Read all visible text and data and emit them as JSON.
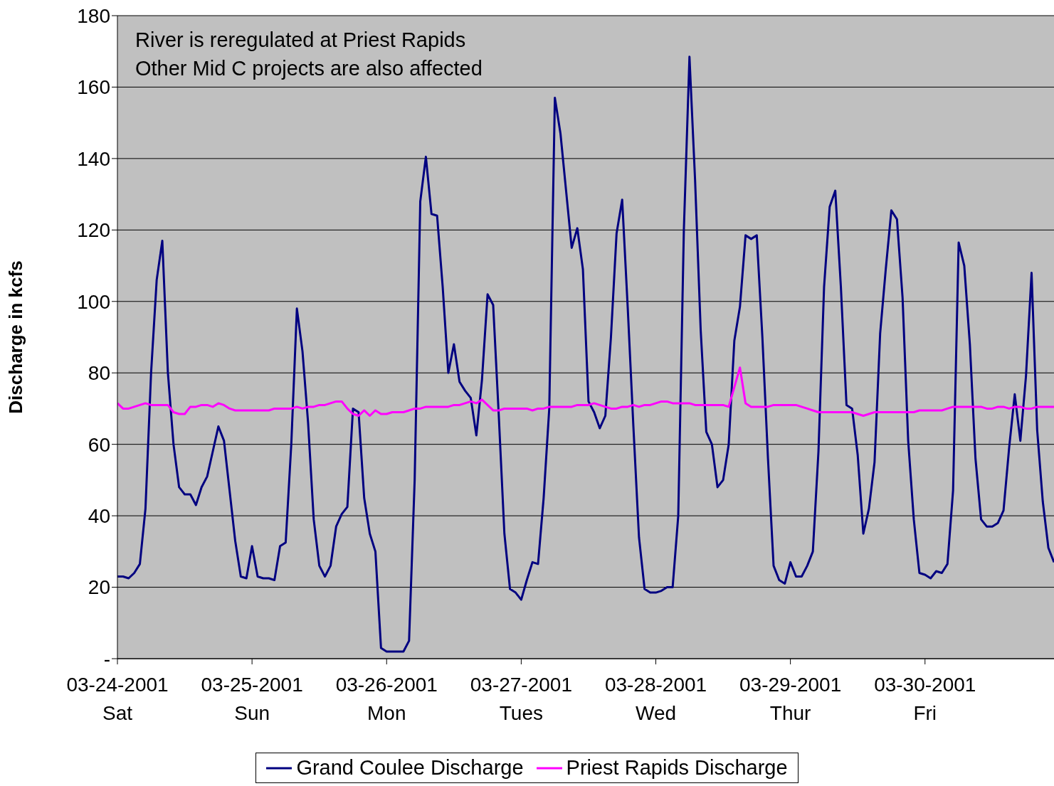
{
  "chart_data": {
    "type": "line",
    "ylabel": "Discharge in kcfs",
    "annotations": [
      "River is reregulated at Priest Rapids",
      "Other Mid C projects are also affected"
    ],
    "x": [
      "2001-03-24T00:00",
      "2001-03-24T01:00",
      "2001-03-24T02:00",
      "2001-03-24T03:00",
      "2001-03-24T04:00",
      "2001-03-24T05:00",
      "2001-03-24T06:00",
      "2001-03-24T07:00",
      "2001-03-24T08:00",
      "2001-03-24T09:00",
      "2001-03-24T10:00",
      "2001-03-24T11:00",
      "2001-03-24T12:00",
      "2001-03-24T13:00",
      "2001-03-24T14:00",
      "2001-03-24T15:00",
      "2001-03-24T16:00",
      "2001-03-24T17:00",
      "2001-03-24T18:00",
      "2001-03-24T19:00",
      "2001-03-24T20:00",
      "2001-03-24T21:00",
      "2001-03-24T22:00",
      "2001-03-24T23:00",
      "2001-03-25T00:00",
      "2001-03-25T01:00",
      "2001-03-25T02:00",
      "2001-03-25T03:00",
      "2001-03-25T04:00",
      "2001-03-25T05:00",
      "2001-03-25T06:00",
      "2001-03-25T07:00",
      "2001-03-25T08:00",
      "2001-03-25T09:00",
      "2001-03-25T10:00",
      "2001-03-25T11:00",
      "2001-03-25T12:00",
      "2001-03-25T13:00",
      "2001-03-25T14:00",
      "2001-03-25T15:00",
      "2001-03-25T16:00",
      "2001-03-25T17:00",
      "2001-03-25T18:00",
      "2001-03-25T19:00",
      "2001-03-25T20:00",
      "2001-03-25T21:00",
      "2001-03-25T22:00",
      "2001-03-25T23:00",
      "2001-03-26T00:00",
      "2001-03-26T01:00",
      "2001-03-26T02:00",
      "2001-03-26T03:00",
      "2001-03-26T04:00",
      "2001-03-26T05:00",
      "2001-03-26T06:00",
      "2001-03-26T07:00",
      "2001-03-26T08:00",
      "2001-03-26T09:00",
      "2001-03-26T10:00",
      "2001-03-26T11:00",
      "2001-03-26T12:00",
      "2001-03-26T13:00",
      "2001-03-26T14:00",
      "2001-03-26T15:00",
      "2001-03-26T16:00",
      "2001-03-26T17:00",
      "2001-03-26T18:00",
      "2001-03-26T19:00",
      "2001-03-26T20:00",
      "2001-03-26T21:00",
      "2001-03-26T22:00",
      "2001-03-26T23:00",
      "2001-03-27T00:00",
      "2001-03-27T01:00",
      "2001-03-27T02:00",
      "2001-03-27T03:00",
      "2001-03-27T04:00",
      "2001-03-27T05:00",
      "2001-03-27T06:00",
      "2001-03-27T07:00",
      "2001-03-27T08:00",
      "2001-03-27T09:00",
      "2001-03-27T10:00",
      "2001-03-27T11:00",
      "2001-03-27T12:00",
      "2001-03-27T13:00",
      "2001-03-27T14:00",
      "2001-03-27T15:00",
      "2001-03-27T16:00",
      "2001-03-27T17:00",
      "2001-03-27T18:00",
      "2001-03-27T19:00",
      "2001-03-27T20:00",
      "2001-03-27T21:00",
      "2001-03-27T22:00",
      "2001-03-27T23:00",
      "2001-03-28T00:00",
      "2001-03-28T01:00",
      "2001-03-28T02:00",
      "2001-03-28T03:00",
      "2001-03-28T04:00",
      "2001-03-28T05:00",
      "2001-03-28T06:00",
      "2001-03-28T07:00",
      "2001-03-28T08:00",
      "2001-03-28T09:00",
      "2001-03-28T10:00",
      "2001-03-28T11:00",
      "2001-03-28T12:00",
      "2001-03-28T13:00",
      "2001-03-28T14:00",
      "2001-03-28T15:00",
      "2001-03-28T16:00",
      "2001-03-28T17:00",
      "2001-03-28T18:00",
      "2001-03-28T19:00",
      "2001-03-28T20:00",
      "2001-03-28T21:00",
      "2001-03-28T22:00",
      "2001-03-28T23:00",
      "2001-03-29T00:00",
      "2001-03-29T01:00",
      "2001-03-29T02:00",
      "2001-03-29T03:00",
      "2001-03-29T04:00",
      "2001-03-29T05:00",
      "2001-03-29T06:00",
      "2001-03-29T07:00",
      "2001-03-29T08:00",
      "2001-03-29T09:00",
      "2001-03-29T10:00",
      "2001-03-29T11:00",
      "2001-03-29T12:00",
      "2001-03-29T13:00",
      "2001-03-29T14:00",
      "2001-03-29T15:00",
      "2001-03-29T16:00",
      "2001-03-29T17:00",
      "2001-03-29T18:00",
      "2001-03-29T19:00",
      "2001-03-29T20:00",
      "2001-03-29T21:00",
      "2001-03-29T22:00",
      "2001-03-29T23:00",
      "2001-03-30T00:00",
      "2001-03-30T01:00",
      "2001-03-30T02:00",
      "2001-03-30T03:00",
      "2001-03-30T04:00",
      "2001-03-30T05:00",
      "2001-03-30T06:00",
      "2001-03-30T07:00",
      "2001-03-30T08:00",
      "2001-03-30T09:00",
      "2001-03-30T10:00",
      "2001-03-30T11:00",
      "2001-03-30T12:00",
      "2001-03-30T13:00",
      "2001-03-30T14:00",
      "2001-03-30T15:00",
      "2001-03-30T16:00",
      "2001-03-30T17:00",
      "2001-03-30T18:00",
      "2001-03-30T19:00",
      "2001-03-30T20:00",
      "2001-03-30T21:00",
      "2001-03-30T22:00",
      "2001-03-30T23:00"
    ],
    "series": [
      {
        "name": "Grand Coulee Discharge",
        "color": "#000080",
        "values": [
          23,
          23,
          22.5,
          24,
          26.5,
          42,
          80,
          106,
          117,
          80,
          60,
          48,
          46,
          46,
          43,
          48,
          51,
          58,
          65,
          61,
          47,
          33,
          23,
          22.5,
          31.5,
          23,
          22.5,
          22.5,
          22,
          31.5,
          32.5,
          60,
          98,
          86,
          66,
          39,
          26,
          23,
          26,
          37,
          40.5,
          42.5,
          70,
          69,
          45,
          35,
          30,
          3,
          2,
          2,
          2,
          2,
          5,
          50,
          128,
          140.5,
          124.5,
          124,
          104,
          80,
          88,
          77.5,
          75,
          73,
          62.5,
          78,
          102,
          99,
          68,
          35,
          19.5,
          18.5,
          16.5,
          22,
          27,
          26.5,
          45,
          70,
          157,
          147,
          131,
          115,
          120.5,
          109,
          72,
          69,
          64.5,
          68,
          90,
          119,
          128.5,
          98,
          65,
          34,
          19.5,
          18.5,
          18.5,
          19,
          20,
          20,
          40,
          120,
          168.5,
          134,
          92,
          63.5,
          60,
          48,
          50,
          60,
          89,
          98.5,
          118.5,
          117.5,
          118.5,
          90,
          56,
          26,
          22,
          21,
          27,
          23,
          23,
          26,
          30,
          58,
          104,
          126.5,
          131,
          104,
          71,
          70,
          57,
          35,
          42,
          55,
          91,
          109,
          125.5,
          123,
          101,
          61,
          39,
          24,
          23.5,
          22.5,
          24.5,
          24,
          26.5,
          47,
          116.5,
          110,
          88,
          56,
          39,
          37,
          37,
          38,
          41.5,
          59,
          74,
          61,
          79,
          108,
          64,
          44,
          31,
          27
        ]
      },
      {
        "name": "Priest Rapids Discharge",
        "color": "#ff00ff",
        "values": [
          71.5,
          70,
          70,
          70.5,
          71,
          71.5,
          71,
          71,
          71,
          71,
          69,
          68.5,
          68.5,
          70.5,
          70.5,
          71,
          71,
          70.5,
          71.5,
          71,
          70,
          69.5,
          69.5,
          69.5,
          69.5,
          69.5,
          69.5,
          69.5,
          70,
          70,
          70,
          70,
          70.5,
          70,
          70.5,
          70.5,
          71,
          71,
          71.5,
          72,
          72,
          70,
          68.5,
          68,
          69.5,
          68,
          69.5,
          68.5,
          68.5,
          69,
          69,
          69,
          69.5,
          70,
          70,
          70.5,
          70.5,
          70.5,
          70.5,
          70.5,
          71,
          71,
          71.5,
          72,
          71.5,
          72.5,
          71,
          69.5,
          69.5,
          70,
          70,
          70,
          70,
          70,
          69.5,
          70,
          70,
          70.5,
          70.5,
          70.5,
          70.5,
          70.5,
          71,
          71,
          71,
          71.5,
          71,
          70.5,
          70,
          70,
          70.5,
          70.5,
          71,
          70.5,
          71,
          71,
          71.5,
          72,
          72,
          71.5,
          71.5,
          71.5,
          71.5,
          71,
          71,
          71,
          71,
          71,
          71,
          70.5,
          76,
          81.5,
          71.5,
          70.5,
          70.5,
          70.5,
          70.5,
          71,
          71,
          71,
          71,
          71,
          70.5,
          70,
          69.5,
          69,
          69,
          69,
          69,
          69,
          69,
          69,
          68.5,
          68,
          68.5,
          69,
          69,
          69,
          69,
          69,
          69,
          69,
          69,
          69.5,
          69.5,
          69.5,
          69.5,
          69.5,
          70,
          70.5,
          70.5,
          70.5,
          70.5,
          70.5,
          70.5,
          70,
          70,
          70.5,
          70.5,
          70,
          70.5,
          70.5,
          70,
          70,
          70.5,
          70.5,
          70.5,
          70.5
        ]
      }
    ],
    "xlim": [
      "2001-03-24T00:00",
      "2001-03-30T23:00"
    ],
    "xticks": [
      {
        "value": "2001-03-24",
        "label": "03-24-2001\nSat"
      },
      {
        "value": "2001-03-25",
        "label": "03-25-2001\nSun"
      },
      {
        "value": "2001-03-26",
        "label": "03-26-2001\nMon"
      },
      {
        "value": "2001-03-27",
        "label": "03-27-2001\nTues"
      },
      {
        "value": "2001-03-28",
        "label": "03-28-2001\nWed"
      },
      {
        "value": "2001-03-29",
        "label": "03-29-2001\nThur"
      },
      {
        "value": "2001-03-30",
        "label": "03-30-2001\nFri"
      }
    ],
    "ylim": [
      0,
      180
    ],
    "yticks": [
      {
        "value": 0,
        "label": "-"
      },
      20,
      40,
      60,
      80,
      100,
      120,
      140,
      160,
      180
    ],
    "grid": "y",
    "legend": "bottom",
    "marker": "none",
    "line_style": "solid"
  }
}
